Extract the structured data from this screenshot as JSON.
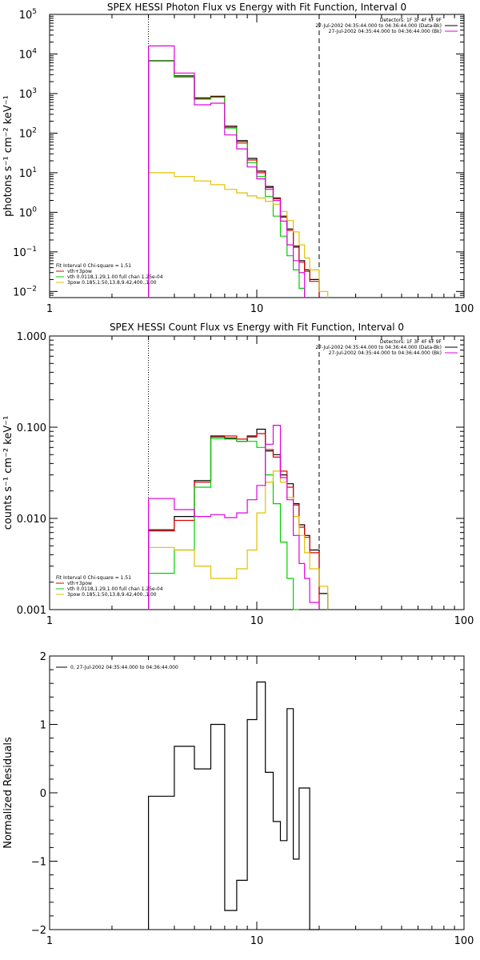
{
  "chart_data": [
    {
      "type": "line",
      "title": "SPEX HESSI Photon Flux vs Energy with Fit Function, Interval 0",
      "ylabel": "photons s⁻¹ cm⁻² keV⁻¹",
      "xlabel": "",
      "xscale": "log",
      "yscale": "log",
      "xlim": [
        1,
        100
      ],
      "ylim": [
        0.007,
        100000
      ],
      "xticks": [
        "1",
        "10",
        "100"
      ],
      "yticks": [
        {
          "value": 0.01,
          "mant": "10",
          "exp": "−2"
        },
        {
          "value": 0.1,
          "mant": "10",
          "exp": "−1"
        },
        {
          "value": 1,
          "mant": "10",
          "exp": "0"
        },
        {
          "value": 10,
          "mant": "10",
          "exp": "1"
        },
        {
          "value": 100,
          "mant": "10",
          "exp": "2"
        },
        {
          "value": 1000,
          "mant": "10",
          "exp": "3"
        },
        {
          "value": 10000,
          "mant": "10",
          "exp": "4"
        },
        {
          "value": 100000,
          "mant": "10",
          "exp": "5"
        }
      ],
      "vlines": [
        {
          "x": 3,
          "style": "dotted"
        },
        {
          "x": 20,
          "style": "dashed"
        }
      ],
      "top_legend": [
        "Detectors: 1F 3F 4F 6F 9F",
        "27-Jul-2002 04:35:44.000 to 04:36:44.000 (Data-Bk)",
        "27-Jul-2002 04:35:44.000 to 04:36:44.000 (Bk)"
      ],
      "top_legend_colors": [
        "",
        "#000000",
        "#e000e0"
      ],
      "fit_legend": [
        "Fit Interval 0   Chi-square = 1.51",
        "vth+3pow",
        "vth 0.0118,1.29,1.00  full chan 1.25e-04",
        "3pow 0.185,1.50,13.8,9.42,400.,1.00"
      ],
      "fit_legend_colors": [
        "",
        "#e00000",
        "#00d000",
        "#e0c000"
      ],
      "edges": [
        3,
        4,
        5,
        6,
        7,
        8,
        9,
        10,
        11,
        12,
        13,
        14,
        15,
        16,
        17,
        18,
        20,
        22
      ],
      "series": [
        {
          "name": "Data-Bk",
          "color": "#000000",
          "values": [
            6800,
            2800,
            780,
            850,
            150,
            65,
            23,
            11,
            4.5,
            2.3,
            0.8,
            0.38,
            0.14,
            0.06,
            0.035,
            0.02,
            null
          ]
        },
        {
          "name": "vth+3pow",
          "color": "#e00000",
          "values": [
            6600,
            2600,
            740,
            820,
            140,
            60,
            21,
            10,
            4.2,
            2.2,
            0.75,
            0.35,
            0.13,
            0.055,
            0.032,
            0.018,
            null
          ]
        },
        {
          "name": "vth",
          "color": "#00d000",
          "values": [
            6600,
            2600,
            720,
            800,
            135,
            55,
            18,
            8,
            2.5,
            0.8,
            0.25,
            0.08,
            0.035,
            0.012,
            null,
            null,
            null
          ]
        },
        {
          "name": "3pow",
          "color": "#e0c000",
          "values": [
            10,
            8,
            6.2,
            5,
            3.8,
            3.1,
            2.6,
            2.3,
            1.9,
            1.6,
            1.05,
            0.62,
            0.32,
            0.15,
            0.07,
            0.035,
            0.01
          ]
        },
        {
          "name": "Bk",
          "color": "#e000e0",
          "values": [
            16000,
            3300,
            520,
            570,
            90,
            40,
            14,
            7,
            3.8,
            2.0,
            0.6,
            0.15,
            0.06,
            0.03,
            null,
            null,
            null
          ]
        }
      ]
    },
    {
      "type": "line",
      "title": "SPEX HESSI Count Flux vs Energy with Fit Function, Interval 0",
      "ylabel": "counts s⁻¹ cm⁻² keV⁻¹",
      "xlabel": "",
      "xscale": "log",
      "yscale": "log",
      "xlim": [
        1,
        100
      ],
      "ylim": [
        0.001,
        1
      ],
      "xticks": [
        "1",
        "10",
        "100"
      ],
      "yticks": [
        {
          "value": 0.001,
          "label": "0.001"
        },
        {
          "value": 0.01,
          "label": "0.010"
        },
        {
          "value": 0.1,
          "label": "0.100"
        },
        {
          "value": 1,
          "label": "1.000"
        }
      ],
      "vlines": [
        {
          "x": 3,
          "style": "dotted"
        },
        {
          "x": 20,
          "style": "dashed"
        }
      ],
      "top_legend": [
        "Detectors: 1F 3F 4F 6F 9F",
        "27-Jul-2002 04:35:44.000 to 04:36:44.000 (Data-Bk)",
        "27-Jul-2002 04:35:44.000 to 04:36:44.000 (Bk)"
      ],
      "top_legend_colors": [
        "",
        "#000000",
        "#e000e0"
      ],
      "fit_legend": [
        "Fit Interval 0   Chi-square = 1.51",
        "vth+3pow",
        "vth 0.0118,1.29,1.00  full chan 1.25e-04",
        "3pow 0.185,1.50,13.8,9.42,400.,1.00"
      ],
      "fit_legend_colors": [
        "",
        "#e00000",
        "#00d000",
        "#e0c000"
      ],
      "edges": [
        3,
        4,
        5,
        6,
        7,
        8,
        9,
        10,
        11,
        12,
        13,
        14,
        15,
        16,
        17,
        18,
        20,
        22
      ],
      "series": [
        {
          "name": "Data-Bk",
          "color": "#000000",
          "values": [
            0.0075,
            0.0105,
            0.026,
            0.08,
            0.076,
            0.07,
            0.08,
            0.095,
            0.055,
            0.05,
            0.03,
            0.024,
            0.0145,
            0.0085,
            0.0065,
            0.0045,
            0.0015
          ]
        },
        {
          "name": "vth+3pow",
          "color": "#e00000",
          "values": [
            0.0073,
            0.0095,
            0.025,
            0.078,
            0.08,
            0.074,
            0.078,
            0.085,
            0.057,
            0.047,
            0.033,
            0.022,
            0.014,
            0.008,
            0.0062,
            0.0042,
            null
          ]
        },
        {
          "name": "vth",
          "color": "#00d000",
          "values": [
            0.0025,
            0.0045,
            0.022,
            0.075,
            0.074,
            0.07,
            0.07,
            0.06,
            0.03,
            0.0145,
            0.0055,
            0.0022,
            0.001,
            null,
            null,
            null,
            null
          ]
        },
        {
          "name": "3pow",
          "color": "#e0c000",
          "values": [
            0.0048,
            0.0045,
            0.003,
            0.0022,
            0.0022,
            0.0028,
            0.0045,
            0.0115,
            0.025,
            0.033,
            0.025,
            0.017,
            0.0105,
            0.0065,
            0.0042,
            0.0028,
            0.0018
          ]
        },
        {
          "name": "Bk",
          "color": "#e000e0",
          "values": [
            0.0165,
            0.0125,
            0.0105,
            0.011,
            0.0102,
            0.0115,
            0.016,
            0.023,
            0.065,
            0.105,
            0.028,
            0.016,
            0.0065,
            0.0032,
            0.0022,
            0.0012,
            null
          ]
        }
      ]
    },
    {
      "type": "line",
      "title": "",
      "ylabel": "Normalized Residuals",
      "xlabel": "",
      "xscale": "log",
      "yscale": "linear",
      "xlim": [
        1,
        100
      ],
      "ylim": [
        -2,
        2
      ],
      "xticks": [
        "1",
        "10",
        "100"
      ],
      "yticks": [
        {
          "value": -2,
          "label": "−2"
        },
        {
          "value": -1,
          "label": "−1"
        },
        {
          "value": 0,
          "label": "0"
        },
        {
          "value": 1,
          "label": "1"
        },
        {
          "value": 2,
          "label": "2"
        }
      ],
      "residual_legend": "0, 27-Jul-2002 04:35:44.000 to 04:36:44.000",
      "edges": [
        3,
        4,
        5,
        6,
        7,
        8,
        9,
        10,
        11,
        12,
        13,
        14,
        15,
        16,
        17,
        18,
        20
      ],
      "series": [
        {
          "name": "0, 27-Jul-2002 04:35:44.000 to 04:36:44.000",
          "color": "#000000",
          "values": [
            -0.05,
            0.68,
            0.35,
            1.0,
            -1.72,
            -1.28,
            1.07,
            1.62,
            0.3,
            -0.42,
            -0.7,
            1.23,
            -0.97,
            0.07,
            0.07,
            -2.0
          ]
        }
      ]
    }
  ]
}
